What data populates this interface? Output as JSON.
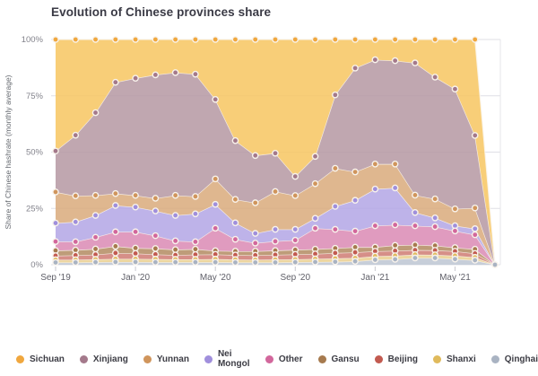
{
  "chart_data": {
    "type": "area",
    "stacked": true,
    "percent_stacked": true,
    "title": "Evolution of Chinese provinces share",
    "ylabel": "Share of Chinese hashrate (monthly average)",
    "ylim": [
      0,
      100
    ],
    "yticks": [
      {
        "value": 0,
        "label": "0%"
      },
      {
        "value": 25,
        "label": "25%"
      },
      {
        "value": 50,
        "label": "50%"
      },
      {
        "value": 75,
        "label": "75%"
      },
      {
        "value": 100,
        "label": "100%"
      }
    ],
    "grid": "horizontal",
    "legend_position": "bottom",
    "months": [
      "Sep '19",
      "Oct '19",
      "Nov '19",
      "Dec '19",
      "Jan '20",
      "Feb '20",
      "Mar '20",
      "Apr '20",
      "May '20",
      "Jun '20",
      "Jul '20",
      "Aug '20",
      "Sep '20",
      "Oct '20",
      "Nov '20",
      "Dec '20",
      "Jan '21",
      "Feb '21",
      "Mar '21",
      "Apr '21",
      "May '21",
      "Jun '21",
      "Jul '21"
    ],
    "x_tick_indices": [
      0,
      4,
      8,
      12,
      16,
      20
    ],
    "x_tick_labels": [
      "Sep '19",
      "Jan '20",
      "May '20",
      "Sep '20",
      "Jan '21",
      "May '21"
    ],
    "stacking_note": "series listed top-of-stack first; Qinghai is the bottom band",
    "series": [
      {
        "name": "Sichuan",
        "color": "#f0a73e",
        "fill": "#f7c765",
        "values": [
          49.5,
          42.5,
          32.5,
          19.0,
          17.2,
          15.7,
          14.7,
          15.4,
          26.6,
          44.9,
          51.5,
          50.5,
          60.8,
          51.9,
          24.6,
          12.7,
          9.0,
          9.4,
          10.4,
          16.7,
          22.0,
          42.6,
          0
        ]
      },
      {
        "name": "Xinjiang",
        "color": "#a4798b",
        "fill": "#b79ba5",
        "values": [
          18.2,
          26.9,
          36.7,
          49.4,
          52.0,
          54.8,
          54.5,
          54.3,
          35.3,
          26.1,
          21.0,
          17.0,
          8.5,
          12.1,
          32.6,
          46.1,
          46.3,
          45.9,
          58.7,
          54.1,
          53.2,
          32.2,
          0
        ]
      },
      {
        "name": "Yunnan",
        "color": "#d0955c",
        "fill": "#dbad7f",
        "values": [
          13.8,
          11.6,
          8.9,
          5.3,
          5.2,
          5.6,
          8.9,
          7.7,
          11.3,
          10.4,
          13.6,
          16.8,
          15.0,
          15.4,
          16.9,
          12.6,
          11.1,
          10.6,
          7.7,
          8.4,
          7.5,
          9.2,
          0
        ]
      },
      {
        "name": "Nei Mongol",
        "color": "#a08fdc",
        "fill": "#b5a9e6",
        "values": [
          8.2,
          8.8,
          9.7,
          11.7,
          11.0,
          11.0,
          11.3,
          12.4,
          10.6,
          7.3,
          4.3,
          5.3,
          4.8,
          4.4,
          10.2,
          13.7,
          16.3,
          16.4,
          5.9,
          3.9,
          2.3,
          2.7,
          0
        ]
      },
      {
        "name": "Other",
        "color": "#d2679c",
        "fill": "#dc8db6",
        "values": [
          4.0,
          3.7,
          5.2,
          6.4,
          7.2,
          5.7,
          3.9,
          3.3,
          10.0,
          5.3,
          3.6,
          4.1,
          4.3,
          9.3,
          8.4,
          7.1,
          9.5,
          9.1,
          8.5,
          8.4,
          7.4,
          6.4,
          0
        ]
      },
      {
        "name": "Gansu",
        "color": "#a67a4e",
        "fill": "#b58e67",
        "values": [
          2.3,
          2.3,
          2.5,
          3.0,
          2.4,
          2.6,
          2.4,
          2.4,
          1.6,
          1.7,
          1.8,
          1.9,
          2.0,
          2.1,
          2.1,
          2.3,
          1.8,
          2.4,
          2.3,
          2.1,
          1.6,
          1.9,
          0
        ]
      },
      {
        "name": "Beijing",
        "color": "#c25a50",
        "fill": "#d07f78",
        "values": [
          1.8,
          2.0,
          2.1,
          2.6,
          2.4,
          2.1,
          1.9,
          2.1,
          2.1,
          2.0,
          2.0,
          2.1,
          2.2,
          2.2,
          2.4,
          2.5,
          2.2,
          2.2,
          2.0,
          2.0,
          2.0,
          1.7,
          0
        ]
      },
      {
        "name": "Shanxi",
        "color": "#e0ba5c",
        "fill": "#ead093",
        "values": [
          1.2,
          1.2,
          1.3,
          1.4,
          1.4,
          1.4,
          1.3,
          1.3,
          1.4,
          1.3,
          1.2,
          1.3,
          1.3,
          1.4,
          1.5,
          1.5,
          1.6,
          1.6,
          1.5,
          1.4,
          1.5,
          1.3,
          0
        ]
      },
      {
        "name": "Qinghai",
        "color": "#a9b3c2",
        "fill": "#bfc7d4",
        "values": [
          1.0,
          1.0,
          1.1,
          1.2,
          1.2,
          1.1,
          1.1,
          1.1,
          1.1,
          1.0,
          1.0,
          1.0,
          1.1,
          1.2,
          1.3,
          1.5,
          2.2,
          2.4,
          3.0,
          3.0,
          2.5,
          2.0,
          0
        ]
      }
    ]
  }
}
